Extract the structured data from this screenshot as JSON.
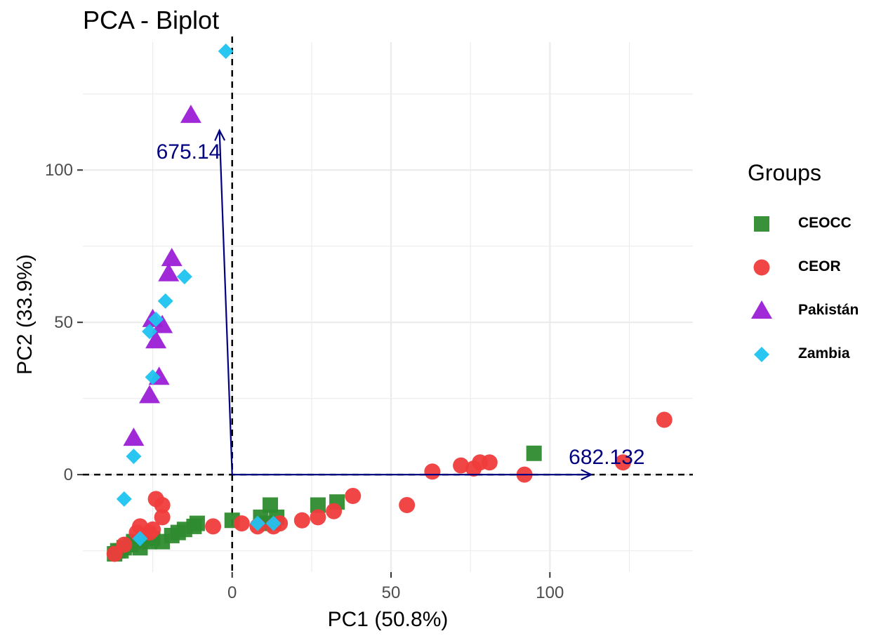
{
  "chart_data": {
    "type": "scatter",
    "title": "PCA - Biplot",
    "xlabel": "PC1 (50.8%)",
    "ylabel": "PC2 (33.9%)",
    "xlim": [
      -47,
      145
    ],
    "ylim": [
      -32,
      142
    ],
    "x_ticks": [
      0,
      50,
      100
    ],
    "y_ticks": [
      0,
      50,
      100
    ],
    "grid": true,
    "reference_lines": [
      "x = 0 (dashed)",
      "y = 0 (dashed)"
    ],
    "legend": {
      "title": "Groups",
      "position": "right"
    },
    "series": [
      {
        "name": "CEOCC",
        "marker": "square",
        "color": "#2e8b2e",
        "points": [
          [
            -37,
            -26
          ],
          [
            -36,
            -25
          ],
          [
            -35,
            -25
          ],
          [
            -34,
            -24
          ],
          [
            -32,
            -23
          ],
          [
            -31,
            -22
          ],
          [
            -29,
            -24
          ],
          [
            -26,
            -22
          ],
          [
            -25,
            -21
          ],
          [
            -22,
            -22
          ],
          [
            -19,
            -20
          ],
          [
            -17,
            -19
          ],
          [
            -15,
            -18
          ],
          [
            -12,
            -17
          ],
          [
            -11,
            -16
          ],
          [
            0,
            -15
          ],
          [
            9,
            -14
          ],
          [
            11,
            -16
          ],
          [
            12,
            -10
          ],
          [
            14,
            -14
          ],
          [
            27,
            -10
          ],
          [
            33,
            -9
          ],
          [
            95,
            7
          ]
        ]
      },
      {
        "name": "CEOR",
        "marker": "circle",
        "color": "#f03c3c",
        "points": [
          [
            -37,
            -26
          ],
          [
            -34,
            -23
          ],
          [
            -30,
            -19
          ],
          [
            -29,
            -17
          ],
          [
            -26,
            -19
          ],
          [
            -25,
            -18
          ],
          [
            -24,
            -8
          ],
          [
            -22,
            -14
          ],
          [
            -22,
            -10
          ],
          [
            -6,
            -17
          ],
          [
            3,
            -16
          ],
          [
            8,
            -17
          ],
          [
            13,
            -17
          ],
          [
            15,
            -16
          ],
          [
            22,
            -15
          ],
          [
            27,
            -14
          ],
          [
            32,
            -12
          ],
          [
            38,
            -7
          ],
          [
            55,
            -10
          ],
          [
            63,
            1
          ],
          [
            72,
            3
          ],
          [
            76,
            2
          ],
          [
            78,
            4
          ],
          [
            81,
            4
          ],
          [
            92,
            0
          ],
          [
            123,
            4
          ],
          [
            136,
            18
          ]
        ]
      },
      {
        "name": "Pakistán",
        "marker": "triangle",
        "color": "#9b1fd6",
        "points": [
          [
            -13,
            118
          ],
          [
            -19,
            71
          ],
          [
            -20,
            66
          ],
          [
            -25,
            51
          ],
          [
            -22,
            49
          ],
          [
            -24,
            44
          ],
          [
            -23,
            32
          ],
          [
            -26,
            26
          ],
          [
            -31,
            12
          ]
        ]
      },
      {
        "name": "Zambia",
        "marker": "diamond",
        "color": "#1ec3f0",
        "points": [
          [
            -2,
            139
          ],
          [
            -15,
            65
          ],
          [
            -21,
            57
          ],
          [
            -24,
            51
          ],
          [
            -26,
            47
          ],
          [
            -25,
            32
          ],
          [
            -31,
            6
          ],
          [
            -34,
            -8
          ],
          [
            -29,
            -21
          ],
          [
            8,
            -16
          ],
          [
            13,
            -16
          ]
        ]
      }
    ],
    "loadings": [
      {
        "label": "675.14",
        "x": -4,
        "y": 113
      },
      {
        "label": "682.132",
        "x": 113,
        "y": 0
      }
    ],
    "colors": {
      "loading_arrow": "#000080",
      "grid": "#ebebeb",
      "axis_text": "#4d4d4d"
    }
  }
}
